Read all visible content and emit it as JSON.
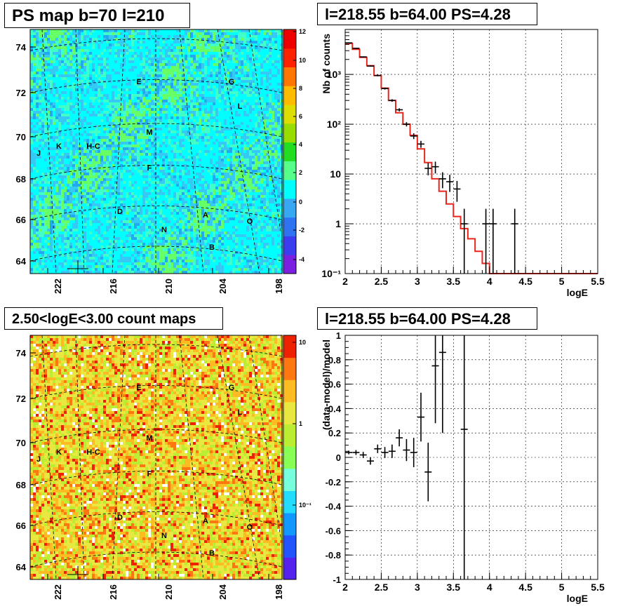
{
  "panels": {
    "top_left_title": "PS map b=70 l=210",
    "top_right_title": "l=218.55 b=64.00 PS=4.28",
    "bottom_left_title": "2.50<logE<3.00 count maps",
    "bottom_right_title": "l=218.55 b=64.00 PS=4.28"
  },
  "colors": {
    "axis": "#000000",
    "model_line": "#e8261c",
    "data_points": "#000000",
    "grid": "#000000"
  },
  "maps": {
    "y_ticks": [
      "64",
      "66",
      "68",
      "70",
      "72",
      "74"
    ],
    "x_ticks": [
      "222",
      "216",
      "210",
      "204",
      "198"
    ],
    "sources": [
      {
        "label": "E"
      },
      {
        "label": "G"
      },
      {
        "label": "L"
      },
      {
        "label": "M"
      },
      {
        "label": "J"
      },
      {
        "label": "K"
      },
      {
        "label": "H-C"
      },
      {
        "label": "F"
      },
      {
        "label": "D"
      },
      {
        "label": "A"
      },
      {
        "label": "O"
      },
      {
        "label": "N"
      },
      {
        "label": "B"
      }
    ],
    "ps_scale_labels": [
      "12",
      "10",
      "8",
      "6",
      "4",
      "2",
      "0",
      "-2",
      "-4"
    ],
    "count_scale_labels": [
      "10",
      "1",
      "10⁻¹"
    ]
  },
  "chart_data": [
    {
      "type": "line",
      "title": "l=218.55 b=64.00 PS=4.28",
      "xlabel": "logE",
      "ylabel": "Nb of counts",
      "log_y": true,
      "xlim": [
        2,
        5.5
      ],
      "ylim": [
        0.1,
        8000
      ],
      "x_ticks": [
        "2",
        "2.5",
        "3",
        "3.5",
        "4",
        "4.5",
        "5",
        "5.5"
      ],
      "y_ticks": [
        "10⁻¹",
        "1",
        "10",
        "10²",
        "10³"
      ],
      "grid": true,
      "series": [
        {
          "kind": "model_step",
          "bin_edges": [
            2.0,
            2.1,
            2.2,
            2.3,
            2.4,
            2.5,
            2.6,
            2.7,
            2.8,
            2.9,
            3.0,
            3.1,
            3.2,
            3.3,
            3.4,
            3.5,
            3.6,
            3.7,
            3.8,
            3.9,
            4.0,
            4.1,
            4.2,
            4.3,
            4.4,
            4.5,
            4.6,
            4.7,
            4.8,
            4.9,
            5.0,
            5.1,
            5.2,
            5.3,
            5.4,
            5.5
          ],
          "values": [
            4200,
            3200,
            2200,
            1500,
            950,
            530,
            300,
            170,
            100,
            60,
            32,
            17,
            8,
            4.5,
            2.5,
            1.4,
            0.8,
            0.5,
            0.28,
            0.16,
            0.1,
            0.1,
            0.1,
            0.1,
            0.1,
            0.1,
            0.1,
            0.1,
            0.1,
            0.1,
            0.1,
            0.1,
            0.1,
            0.1,
            0.1
          ]
        },
        {
          "kind": "data_points",
          "x": [
            2.05,
            2.15,
            2.25,
            2.35,
            2.45,
            2.55,
            2.65,
            2.75,
            2.85,
            2.95,
            3.05,
            3.15,
            3.25,
            3.35,
            3.45,
            3.55,
            3.65,
            3.95,
            4.05,
            4.35
          ],
          "y": [
            4300,
            3350,
            2250,
            1470,
            950,
            520,
            300,
            195,
            100,
            58,
            40,
            13,
            14,
            8,
            7,
            5,
            1,
            1,
            1,
            1
          ]
        }
      ]
    },
    {
      "type": "scatter",
      "title": "l=218.55 b=64.00 PS=4.28",
      "xlabel": "logE",
      "ylabel": "(data-model)/model",
      "xlim": [
        2,
        5.5
      ],
      "ylim": [
        -1,
        1
      ],
      "x_ticks": [
        "2",
        "2.5",
        "3",
        "3.5",
        "4",
        "4.5",
        "5",
        "5.5"
      ],
      "y_ticks": [
        "-1",
        "-0.8",
        "-0.6",
        "-0.4",
        "-0.2",
        "0",
        "0.2",
        "0.4",
        "0.6",
        "0.8",
        "1"
      ],
      "grid": true,
      "series": [
        {
          "kind": "residuals",
          "x": [
            2.05,
            2.15,
            2.25,
            2.35,
            2.45,
            2.55,
            2.65,
            2.75,
            2.85,
            2.95,
            3.05,
            3.15,
            3.25,
            3.35,
            3.65
          ],
          "y": [
            0.04,
            0.04,
            0.02,
            -0.03,
            0.07,
            0.04,
            0.05,
            0.16,
            0.06,
            0.04,
            0.33,
            -0.12,
            0.75,
            0.86,
            0.23
          ],
          "err": [
            0.015,
            0.02,
            0.025,
            0.03,
            0.035,
            0.045,
            0.055,
            0.07,
            0.09,
            0.12,
            0.2,
            0.24,
            0.47,
            0.66,
            1.3
          ]
        }
      ]
    }
  ]
}
